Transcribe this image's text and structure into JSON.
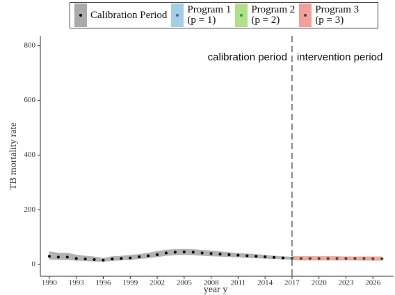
{
  "chart_data": {
    "type": "line",
    "xlabel": "year y",
    "ylabel": "TB mortality rate",
    "xlim": [
      1989,
      2028.3
    ],
    "ylim": [
      -43,
      835
    ],
    "xticks": [
      1990,
      1993,
      1996,
      1999,
      2002,
      2005,
      2008,
      2011,
      2014,
      2017,
      2020,
      2023,
      2026
    ],
    "yticks": [
      0,
      200,
      400,
      600,
      800
    ],
    "vline": 2017,
    "annotations": [
      "calibration period",
      "intervention period"
    ],
    "series": [
      {
        "name": "Calibration Period",
        "color": "#aaaaaa",
        "marker_color": "#000000",
        "x": [
          1990,
          1991,
          1992,
          1993,
          1994,
          1995,
          1996,
          1997,
          1998,
          1999,
          2000,
          2001,
          2002,
          2003,
          2004,
          2005,
          2006,
          2007,
          2008,
          2009,
          2010,
          2011,
          2012,
          2013,
          2014,
          2015,
          2016,
          2017
        ],
        "values": [
          30,
          27,
          27,
          22,
          20,
          18,
          16,
          20,
          22,
          24,
          28,
          32,
          36,
          42,
          45,
          46,
          45,
          42,
          40,
          38,
          36,
          34,
          32,
          30,
          28,
          26,
          24,
          23
        ],
        "lower": [
          18,
          17,
          17,
          14,
          13,
          11,
          10,
          13,
          15,
          17,
          20,
          23,
          27,
          32,
          34,
          35,
          34,
          32,
          30,
          29,
          27,
          26,
          24,
          23,
          21,
          20,
          19,
          18
        ],
        "upper": [
          48,
          43,
          43,
          36,
          32,
          29,
          24,
          30,
          32,
          35,
          38,
          43,
          49,
          54,
          56,
          57,
          56,
          53,
          51,
          48,
          45,
          42,
          40,
          38,
          35,
          32,
          30,
          28
        ]
      },
      {
        "name": "Program 1\n(p = 1)",
        "color": "#a6cde3",
        "marker_color": "#1f78b4",
        "x": [
          2017,
          2018,
          2019,
          2020,
          2021,
          2022,
          2023,
          2024,
          2025,
          2026,
          2027
        ],
        "values": [
          23,
          22,
          22,
          22,
          22,
          22,
          22,
          22,
          22,
          21,
          21
        ],
        "lower": [
          16,
          15,
          15,
          15,
          15,
          15,
          15,
          15,
          14,
          14,
          14
        ],
        "upper": [
          30,
          30,
          30,
          30,
          30,
          30,
          29,
          29,
          29,
          29,
          29
        ]
      },
      {
        "name": "Program 2\n(p = 2)",
        "color": "#b2df8a",
        "marker_color": "#33a02c",
        "x": [
          2017,
          2018,
          2019,
          2020,
          2021,
          2022,
          2023,
          2024,
          2025,
          2026,
          2027
        ],
        "values": [
          23,
          22,
          22,
          22,
          22,
          22,
          22,
          22,
          22,
          21,
          21
        ],
        "lower": [
          16,
          15,
          15,
          15,
          15,
          15,
          15,
          15,
          14,
          14,
          14
        ],
        "upper": [
          30,
          30,
          30,
          30,
          30,
          30,
          29,
          29,
          29,
          29,
          29
        ]
      },
      {
        "name": "Program 3\n(p = 3)",
        "color": "#f4a09a",
        "marker_color": "#444444",
        "x": [
          2017,
          2018,
          2019,
          2020,
          2021,
          2022,
          2023,
          2024,
          2025,
          2026,
          2027
        ],
        "values": [
          23,
          22,
          22,
          22,
          22,
          22,
          22,
          22,
          22,
          21,
          21
        ],
        "lower": [
          16,
          15,
          15,
          15,
          15,
          15,
          15,
          15,
          14,
          14,
          14
        ],
        "upper": [
          30,
          30,
          30,
          30,
          30,
          30,
          29,
          29,
          29,
          29,
          29
        ]
      }
    ]
  }
}
